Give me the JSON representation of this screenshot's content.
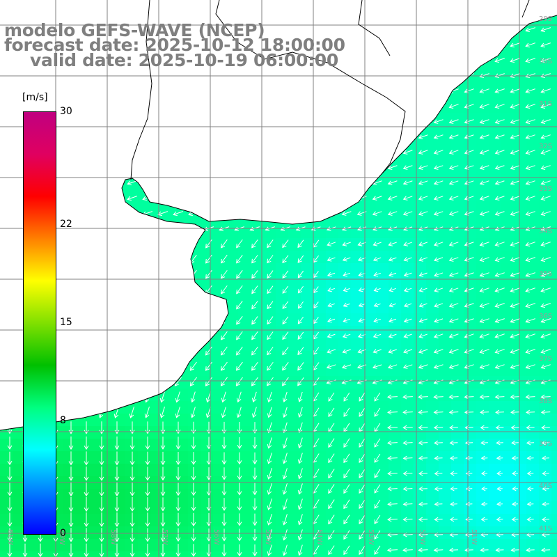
{
  "title": {
    "line1": "modelo GEFS-WAVE (NCEP)",
    "line2": "forecast date: 2025-10-12 18:00:00",
    "line3": "valid date: 2025-10-19 06:00:00"
  },
  "colorbar": {
    "unit": "[m/s]",
    "min": 0,
    "max": 30,
    "ticks": [
      {
        "value": 30,
        "label": "30"
      },
      {
        "value": 22,
        "label": "22"
      },
      {
        "value": 15,
        "label": "15"
      },
      {
        "value": 8,
        "label": "8"
      },
      {
        "value": 0,
        "label": "0"
      }
    ],
    "colors": [
      "#0000ff",
      "#0080ff",
      "#00ffff",
      "#00ff80",
      "#00c000",
      "#80e000",
      "#ffff00",
      "#ff8000",
      "#ff0000",
      "#e00060",
      "#c00080"
    ]
  },
  "grid": {
    "lon_labels": [
      "61W",
      "59W",
      "58W",
      "57W",
      "56W",
      "55W",
      "54W",
      "53W",
      "52W",
      "51W"
    ],
    "lat_labels": [
      "29S",
      "30S",
      "31S",
      "32S",
      "33S",
      "34S",
      "35S",
      "36S",
      "37S",
      "38S",
      "39S",
      "40S",
      "41S"
    ]
  },
  "colors": {
    "land": "#ffffff",
    "coast": "#000000",
    "grid": "#808080",
    "arrow": "#ffffff",
    "title": "#7f7f7f"
  }
}
